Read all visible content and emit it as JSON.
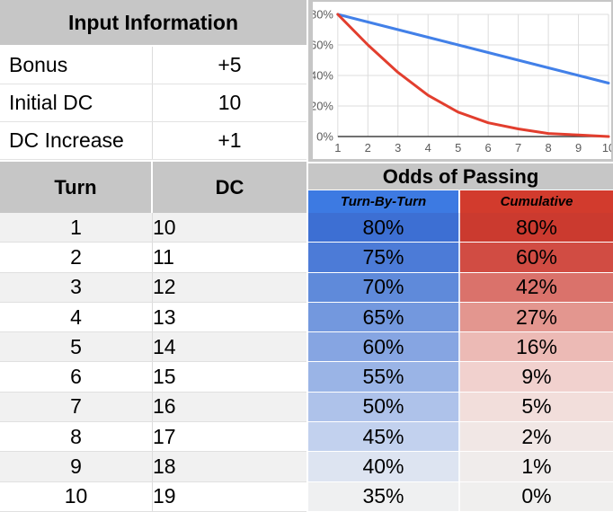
{
  "input_info": {
    "title": "Input Information",
    "rows": [
      {
        "label": "Bonus",
        "value": "+5"
      },
      {
        "label": "Initial DC",
        "value": "10"
      },
      {
        "label": "DC Increase",
        "value": "+1"
      }
    ]
  },
  "odds_table": {
    "col_turn": "Turn",
    "col_dc": "DC",
    "title": "Odds of Passing",
    "sub_headers": [
      {
        "label": "Turn-By-Turn",
        "bg": "#3d7ae2"
      },
      {
        "label": "Cumulative",
        "bg": "#d23b2d"
      }
    ],
    "rows": [
      {
        "turn": "1",
        "dc": "10",
        "tbt": "80%",
        "cum": "80%",
        "tbt_bg": "#3d6fd3",
        "cum_bg": "#cb3a2f"
      },
      {
        "turn": "2",
        "dc": "11",
        "tbt": "75%",
        "cum": "60%",
        "tbt_bg": "#4c7bd7",
        "cum_bg": "#d14c43"
      },
      {
        "turn": "3",
        "dc": "12",
        "tbt": "70%",
        "cum": "42%",
        "tbt_bg": "#5f8ada",
        "cum_bg": "#da726b"
      },
      {
        "turn": "4",
        "dc": "13",
        "tbt": "65%",
        "cum": "27%",
        "tbt_bg": "#7398de",
        "cum_bg": "#e3968f"
      },
      {
        "turn": "5",
        "dc": "14",
        "tbt": "60%",
        "cum": "16%",
        "tbt_bg": "#86a5e2",
        "cum_bg": "#ecbab5"
      },
      {
        "turn": "6",
        "dc": "15",
        "tbt": "55%",
        "cum": "9%",
        "tbt_bg": "#9ab4e6",
        "cum_bg": "#f1d1ce"
      },
      {
        "turn": "7",
        "dc": "16",
        "tbt": "50%",
        "cum": "5%",
        "tbt_bg": "#aec2ea",
        "cum_bg": "#f2dedb"
      },
      {
        "turn": "8",
        "dc": "17",
        "tbt": "45%",
        "cum": "2%",
        "tbt_bg": "#c2d1ee",
        "cum_bg": "#f1e7e5"
      },
      {
        "turn": "9",
        "dc": "18",
        "tbt": "40%",
        "cum": "1%",
        "tbt_bg": "#dde4f1",
        "cum_bg": "#f0eceb"
      },
      {
        "turn": "10",
        "dc": "19",
        "tbt": "35%",
        "cum": "0%",
        "tbt_bg": "#eff0f1",
        "cum_bg": "#f0efee"
      }
    ]
  },
  "chart_data": {
    "type": "line",
    "x": [
      1,
      2,
      3,
      4,
      5,
      6,
      7,
      8,
      9,
      10
    ],
    "series": [
      {
        "name": "Turn-By-Turn",
        "color": "#4280e8",
        "values": [
          80,
          75,
          70,
          65,
          60,
          55,
          50,
          45,
          40,
          35
        ]
      },
      {
        "name": "Cumulative",
        "color": "#e23e2e",
        "values": [
          80,
          60,
          42,
          27,
          16,
          9,
          5,
          2,
          1,
          0
        ]
      }
    ],
    "ylim": [
      0,
      80
    ],
    "ytick_values": [
      0,
      20,
      40,
      60,
      80
    ],
    "ytick_labels": [
      "0%",
      "20%",
      "40%",
      "60%",
      "80%"
    ],
    "xtick_labels": [
      "1",
      "2",
      "3",
      "4",
      "5",
      "6",
      "7",
      "8",
      "9",
      "10"
    ],
    "grid": true,
    "legend": "none",
    "title": "",
    "xlabel": "",
    "ylabel": ""
  },
  "colors": {
    "header_bg": "#c6c6c6",
    "row_alt": [
      "#f1f1f1",
      "#ffffff"
    ],
    "gridline": "#dcdcdc",
    "axis_line": "#424242",
    "tick_text": "#5a5a5a"
  }
}
